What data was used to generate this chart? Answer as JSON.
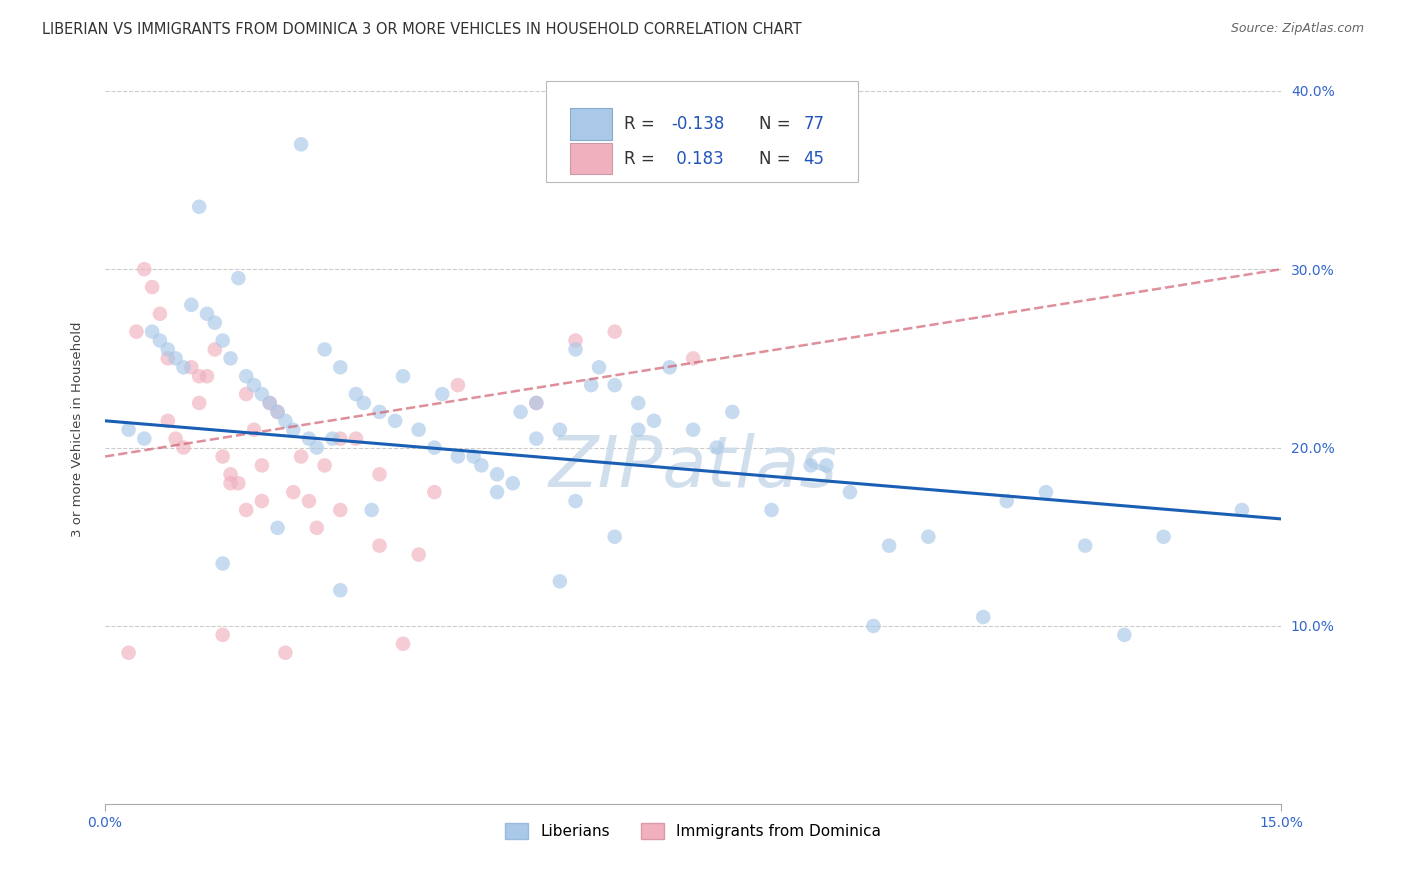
{
  "title": "LIBERIAN VS IMMIGRANTS FROM DOMINICA 3 OR MORE VEHICLES IN HOUSEHOLD CORRELATION CHART",
  "source": "Source: ZipAtlas.com",
  "ylabel": "3 or more Vehicles in Household",
  "xlim": [
    0.0,
    15.0
  ],
  "ylim": [
    0.0,
    42.0
  ],
  "xtick_positions": [
    0.0,
    15.0
  ],
  "xtick_labels": [
    "0.0%",
    "15.0%"
  ],
  "ytick_positions": [
    10.0,
    20.0,
    30.0,
    40.0
  ],
  "ytick_labels": [
    "10.0%",
    "20.0%",
    "30.0%",
    "40.0%"
  ],
  "blue_scatter_x": [
    2.5,
    1.2,
    1.7,
    0.3,
    0.5,
    0.6,
    0.7,
    0.8,
    0.9,
    1.0,
    1.1,
    1.3,
    1.4,
    1.5,
    1.6,
    1.8,
    1.9,
    2.0,
    2.1,
    2.2,
    2.3,
    2.4,
    2.6,
    2.7,
    2.8,
    3.0,
    3.2,
    3.3,
    3.5,
    3.7,
    4.0,
    4.2,
    4.5,
    4.8,
    5.0,
    5.2,
    5.5,
    5.8,
    6.0,
    6.3,
    6.5,
    6.8,
    7.0,
    7.5,
    8.0,
    9.0,
    9.5,
    10.0,
    11.5,
    12.0,
    13.5,
    5.5,
    6.2,
    7.2,
    8.5,
    10.5,
    12.5,
    3.8,
    4.3,
    5.3,
    6.8,
    7.8,
    9.2,
    5.0,
    6.0,
    2.9,
    4.7,
    3.4,
    2.2,
    1.5,
    5.8,
    3.0,
    6.5,
    9.8,
    14.5,
    11.2,
    13.0
  ],
  "blue_scatter_y": [
    37.0,
    33.5,
    29.5,
    21.0,
    20.5,
    26.5,
    26.0,
    25.5,
    25.0,
    24.5,
    28.0,
    27.5,
    27.0,
    26.0,
    25.0,
    24.0,
    23.5,
    23.0,
    22.5,
    22.0,
    21.5,
    21.0,
    20.5,
    20.0,
    25.5,
    24.5,
    23.0,
    22.5,
    22.0,
    21.5,
    21.0,
    20.0,
    19.5,
    19.0,
    18.5,
    18.0,
    22.5,
    21.0,
    25.5,
    24.5,
    23.5,
    22.5,
    21.5,
    21.0,
    22.0,
    19.0,
    17.5,
    14.5,
    17.0,
    17.5,
    15.0,
    20.5,
    23.5,
    24.5,
    16.5,
    15.0,
    14.5,
    24.0,
    23.0,
    22.0,
    21.0,
    20.0,
    19.0,
    17.5,
    17.0,
    20.5,
    19.5,
    16.5,
    15.5,
    13.5,
    12.5,
    12.0,
    15.0,
    10.0,
    16.5,
    10.5,
    9.5
  ],
  "pink_scatter_x": [
    0.3,
    0.5,
    0.6,
    0.7,
    0.8,
    0.9,
    1.0,
    1.1,
    1.2,
    1.3,
    1.4,
    1.5,
    1.6,
    1.7,
    1.8,
    1.9,
    2.0,
    2.1,
    2.2,
    2.4,
    2.6,
    2.8,
    3.0,
    3.2,
    3.5,
    4.0,
    0.4,
    0.8,
    1.2,
    1.6,
    2.0,
    2.5,
    3.0,
    3.5,
    4.5,
    5.5,
    6.5,
    7.5,
    1.5,
    2.3,
    3.8,
    2.7,
    1.8,
    4.2,
    6.0
  ],
  "pink_scatter_y": [
    8.5,
    30.0,
    29.0,
    27.5,
    21.5,
    20.5,
    20.0,
    24.5,
    22.5,
    24.0,
    25.5,
    19.5,
    18.5,
    18.0,
    23.0,
    21.0,
    19.0,
    22.5,
    22.0,
    17.5,
    17.0,
    19.0,
    16.5,
    20.5,
    14.5,
    14.0,
    26.5,
    25.0,
    24.0,
    18.0,
    17.0,
    19.5,
    20.5,
    18.5,
    23.5,
    22.5,
    26.5,
    25.0,
    9.5,
    8.5,
    9.0,
    15.5,
    16.5,
    17.5,
    26.0
  ],
  "blue_line_x": [
    0.0,
    15.0
  ],
  "blue_line_y": [
    21.5,
    16.0
  ],
  "pink_line_x": [
    0.0,
    15.0
  ],
  "pink_line_y": [
    19.5,
    30.0
  ],
  "watermark": "ZIPatlas",
  "scatter_alpha": 0.65,
  "scatter_size": 110,
  "blue_color": "#aac8e8",
  "pink_color": "#f0b0be",
  "blue_line_color": "#1a5fb4",
  "pink_line_color": "#d06070",
  "grid_color": "#cccccc",
  "grid_linestyle": "--",
  "background_color": "#ffffff",
  "title_fontsize": 10.5,
  "axis_fontsize": 9.5,
  "tick_fontsize": 10,
  "watermark_fontsize": 52,
  "watermark_color": "#ccdcec",
  "legend_r_color": "#2255bb",
  "legend_n_color": "#2255bb",
  "legend_fontsize": 12,
  "ytick_color": "#3366cc"
}
